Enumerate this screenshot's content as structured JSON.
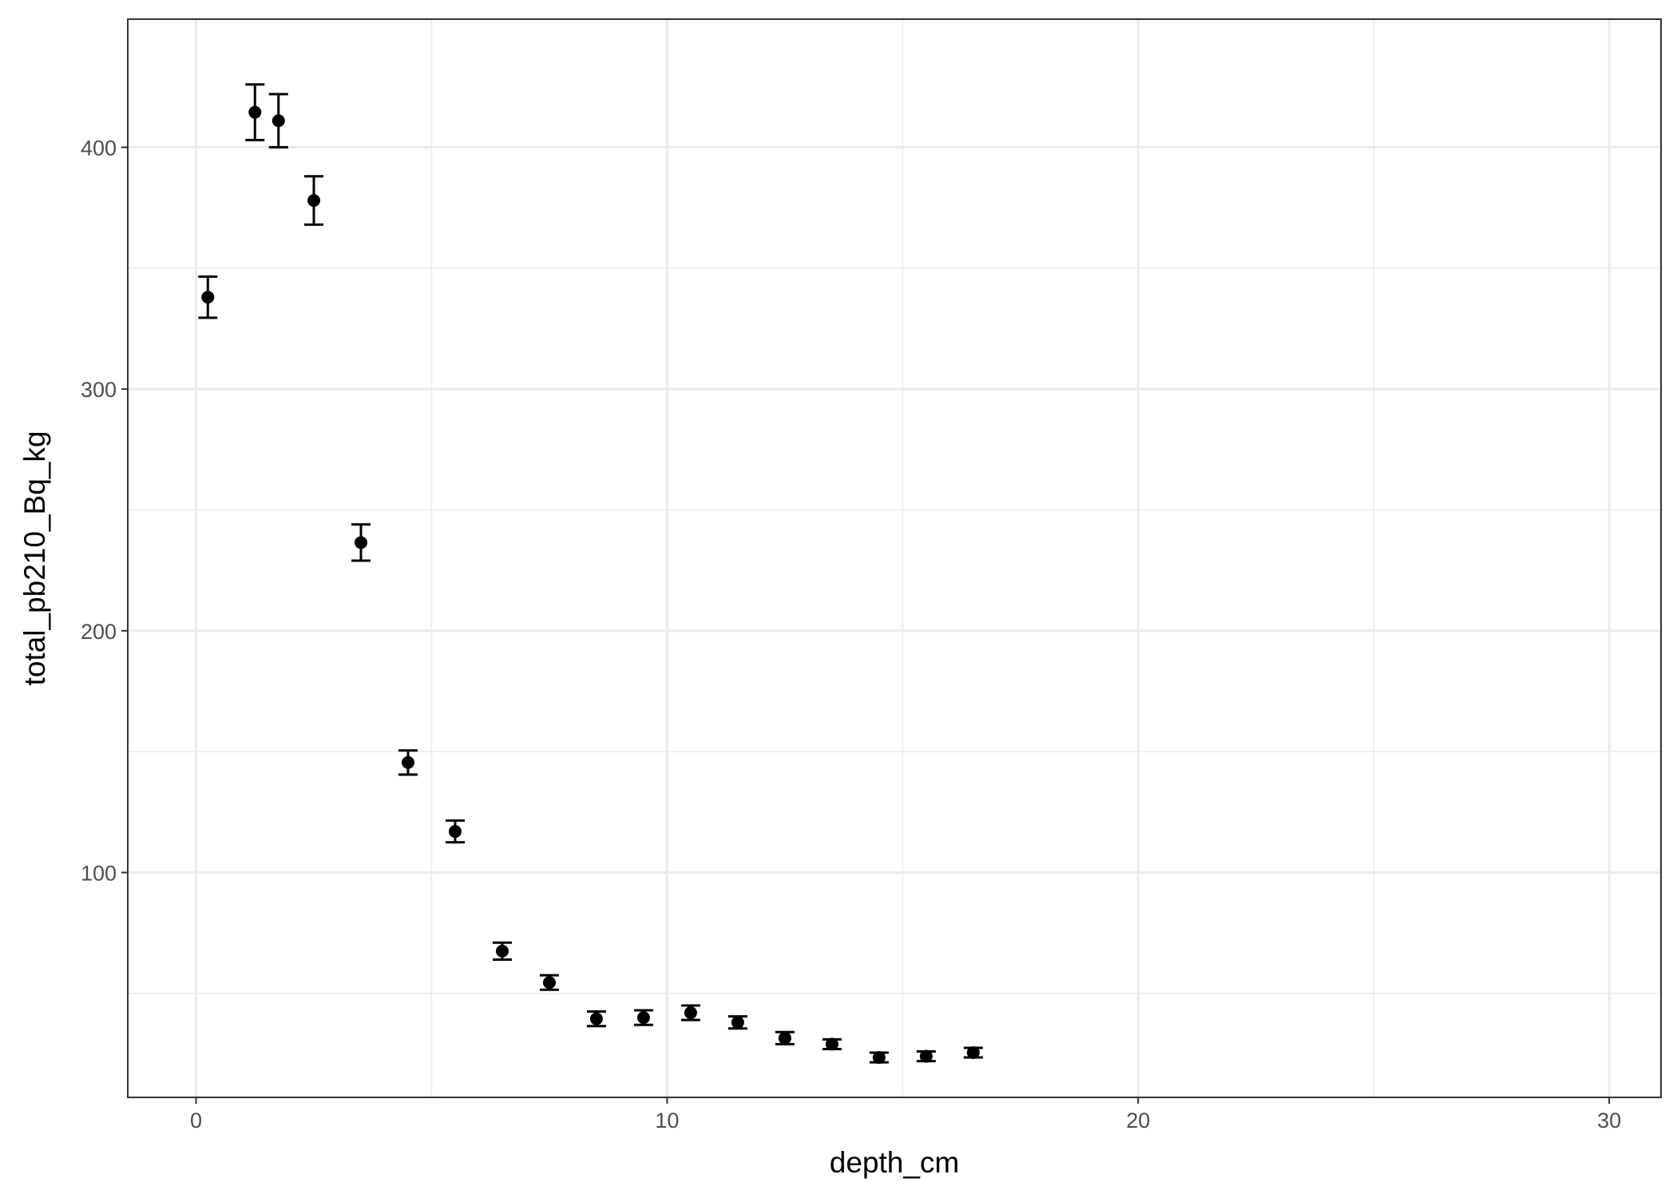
{
  "chart_data": {
    "type": "scatter",
    "title": "",
    "xlabel": "depth_cm",
    "ylabel": "total_pb210_Bq_kg",
    "xlim": [
      -1.45,
      31.1
    ],
    "ylim": [
      7,
      453
    ],
    "x_major_ticks": [
      0,
      10,
      20,
      30
    ],
    "x_minor_ticks": [
      5,
      15,
      25
    ],
    "y_major_ticks": [
      100,
      200,
      300,
      400
    ],
    "y_minor_ticks": [
      50,
      150,
      250,
      350
    ],
    "x_tick_labels": [
      "0",
      "10",
      "20",
      "30"
    ],
    "y_tick_labels": [
      "100",
      "200",
      "300",
      "400"
    ],
    "grid": true,
    "legend": "none",
    "error_bars": true,
    "colors": {
      "points": "#000000",
      "grid": "#ebebeb",
      "panel_border": "#333333",
      "tick_label": "#4d4d4d"
    },
    "series": [
      {
        "points": [
          {
            "x": 0.25,
            "y": 338,
            "lo": 329.5,
            "hi": 346.5
          },
          {
            "x": 1.25,
            "y": 414.5,
            "lo": 403,
            "hi": 426
          },
          {
            "x": 1.75,
            "y": 411,
            "lo": 400,
            "hi": 422
          },
          {
            "x": 2.5,
            "y": 378,
            "lo": 368,
            "hi": 388
          },
          {
            "x": 3.5,
            "y": 236.5,
            "lo": 229,
            "hi": 244
          },
          {
            "x": 4.5,
            "y": 145.5,
            "lo": 140.5,
            "hi": 150.5
          },
          {
            "x": 5.5,
            "y": 117,
            "lo": 112.5,
            "hi": 121.5
          },
          {
            "x": 6.5,
            "y": 67.5,
            "lo": 64,
            "hi": 71
          },
          {
            "x": 7.5,
            "y": 54.5,
            "lo": 51.5,
            "hi": 57.5
          },
          {
            "x": 8.5,
            "y": 39.5,
            "lo": 36.5,
            "hi": 42.5
          },
          {
            "x": 9.5,
            "y": 40,
            "lo": 37,
            "hi": 43
          },
          {
            "x": 10.5,
            "y": 42,
            "lo": 39,
            "hi": 45
          },
          {
            "x": 11.5,
            "y": 38,
            "lo": 35.5,
            "hi": 40.5
          },
          {
            "x": 12.5,
            "y": 31.5,
            "lo": 29,
            "hi": 34
          },
          {
            "x": 13.5,
            "y": 29,
            "lo": 27,
            "hi": 31
          },
          {
            "x": 14.5,
            "y": 23.5,
            "lo": 21.5,
            "hi": 25.5
          },
          {
            "x": 15.5,
            "y": 24,
            "lo": 22,
            "hi": 26
          },
          {
            "x": 16.5,
            "y": 25.5,
            "lo": 23.5,
            "hi": 27.5
          }
        ]
      }
    ]
  }
}
